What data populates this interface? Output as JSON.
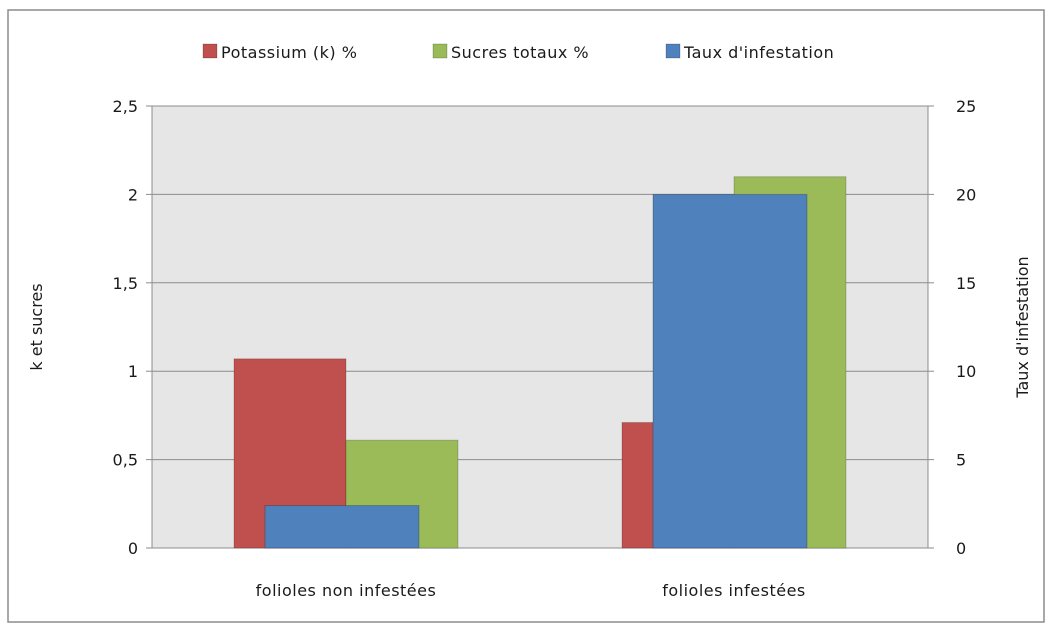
{
  "chart_data": {
    "type": "bar",
    "categories": [
      "folioles non infestées",
      "folioles infestées"
    ],
    "series": [
      {
        "name": "Potassium (k) %",
        "axis": "left",
        "color": "#c0504d",
        "values": [
          1.07,
          0.71
        ]
      },
      {
        "name": "Sucres totaux %",
        "axis": "left",
        "color": "#9bbb59",
        "values": [
          0.61,
          2.1
        ]
      },
      {
        "name": "Taux d'infestation",
        "axis": "right",
        "color": "#4f81bd",
        "values": [
          2.4,
          20.0
        ]
      }
    ],
    "ylabel_left": "k et sucres",
    "ylabel_right": "Taux d'infestation",
    "ylim_left": [
      0,
      2.5
    ],
    "ylim_right": [
      0,
      25
    ],
    "yticks_left": [
      "0",
      "0,5",
      "1",
      "1,5",
      "2",
      "2,5"
    ],
    "yticks_right": [
      "0",
      "5",
      "10",
      "15",
      "20",
      "25"
    ],
    "legend_position": "top",
    "grid": true,
    "plot_background": "#e6e6e6"
  }
}
